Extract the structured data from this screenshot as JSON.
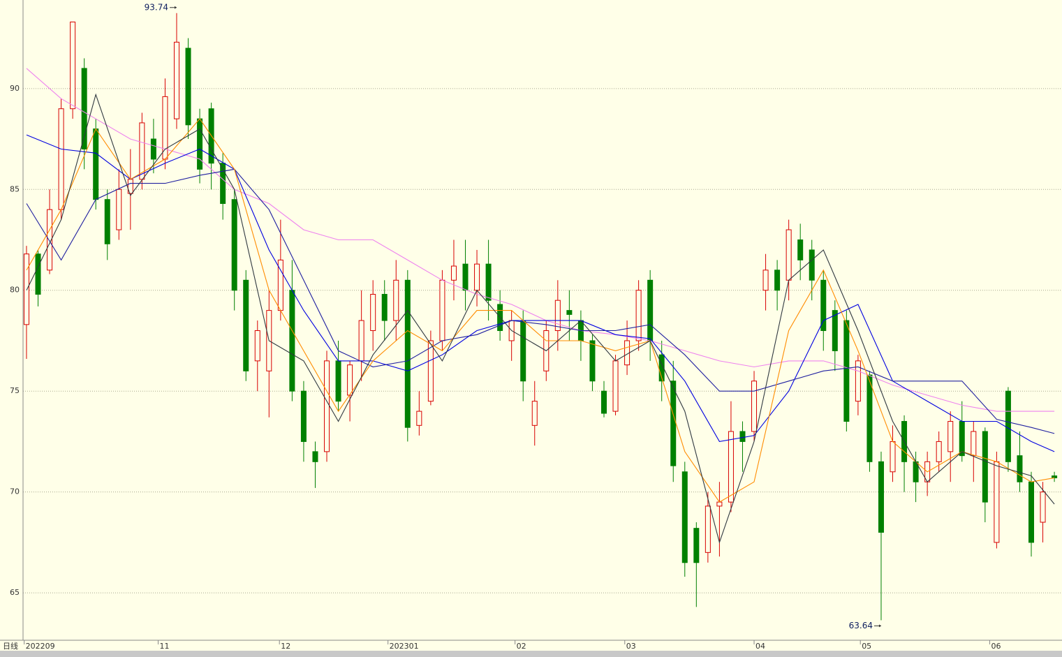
{
  "chart_data": {
    "type": "candlestick",
    "period_label": "日线",
    "xlim": [
      -0.3,
      89.66
    ],
    "ylim": [
      62.65,
      94.39
    ],
    "yticks": [
      65,
      70,
      75,
      80,
      85,
      90
    ],
    "grid": true,
    "xticks": [
      {
        "value": -0.2,
        "label": "202209"
      },
      {
        "value": 11.4,
        "label": "11"
      },
      {
        "value": 21.9,
        "label": "12"
      },
      {
        "value": 31.3,
        "label": "202301"
      },
      {
        "value": 42.3,
        "label": "02"
      },
      {
        "value": 51.8,
        "label": "03"
      },
      {
        "value": 63.0,
        "label": "04"
      },
      {
        "value": 72.2,
        "label": "05"
      },
      {
        "value": 83.4,
        "label": "06"
      }
    ],
    "up_color": "#d80000",
    "down_color": "#008000",
    "candles": {
      "open": [
        78.3,
        81.8,
        81,
        84,
        89,
        91,
        88,
        84.5,
        83,
        84.8,
        85.5,
        87.5,
        86.5,
        88.5,
        92,
        88.5,
        89,
        86.3,
        84.5,
        80.5,
        76.5,
        76,
        79,
        80,
        75,
        72,
        72,
        76.5,
        74.8,
        76.5,
        78,
        79.8,
        78.5,
        80.5,
        73.3,
        74.5,
        77.5,
        80.5,
        81.3,
        80,
        81.3,
        79.3,
        77.5,
        78.5,
        73.3,
        76,
        78,
        79,
        78.5,
        77.5,
        75,
        74,
        76.3,
        77.5,
        80.5,
        76.8,
        75.5,
        71,
        68.2,
        67,
        69.3,
        69.5,
        73,
        73,
        80,
        81,
        80.5,
        82.5,
        82,
        80.5,
        79,
        78.5,
        74.5,
        75.8,
        71.5,
        71,
        73.5,
        71.5,
        70.5,
        71.5,
        72,
        73.5,
        71.8,
        73,
        67.5,
        75,
        71.8,
        70.5,
        68.5,
        70.8
      ],
      "high": [
        82.2,
        82,
        85,
        89.5,
        93.3,
        91.5,
        88.5,
        85,
        86,
        87,
        88.8,
        88.5,
        90.5,
        93.74,
        92.5,
        89,
        89.3,
        86.8,
        85,
        81,
        78.5,
        80,
        83.5,
        81.5,
        75.5,
        72.5,
        77,
        77.5,
        76.5,
        80,
        80.5,
        80.5,
        81.5,
        81,
        75,
        78,
        81,
        82.5,
        82.5,
        82,
        82.5,
        80,
        79,
        79,
        75.5,
        78.5,
        80.5,
        80,
        79,
        77.8,
        75.5,
        76.8,
        78.5,
        80.5,
        81,
        77.5,
        76.5,
        71.5,
        68.5,
        70,
        70.5,
        74.5,
        73.5,
        76,
        81.8,
        81.5,
        83.5,
        83.3,
        82.5,
        81,
        79.5,
        79,
        76.8,
        76,
        72,
        73.3,
        73.8,
        72,
        72,
        73,
        74,
        74.5,
        73.5,
        73.2,
        72,
        75.2,
        73,
        71,
        70.5,
        71
      ],
      "low": [
        76.6,
        79.2,
        80.8,
        83.5,
        88.5,
        86,
        84,
        81.5,
        82.5,
        83,
        85,
        85.8,
        86,
        88,
        87.5,
        85.3,
        85,
        83.5,
        79,
        75.5,
        75,
        73.7,
        78.5,
        74.5,
        71.5,
        70.2,
        71.5,
        74,
        73.5,
        75.5,
        77,
        77.5,
        77.5,
        72.5,
        72.8,
        74.3,
        77,
        79.5,
        79,
        79.2,
        78.5,
        77.5,
        76.5,
        74.5,
        72.3,
        75.5,
        77,
        77.5,
        76.5,
        75,
        73.7,
        73.8,
        75.8,
        77,
        76.5,
        74.5,
        70.5,
        65.8,
        64.3,
        66.5,
        66.8,
        69,
        71,
        72.5,
        79,
        79,
        79.5,
        80.5,
        79.5,
        77,
        76,
        73,
        73.8,
        71,
        63.64,
        70.5,
        70,
        69.5,
        69.8,
        71,
        70.5,
        71.5,
        70.5,
        68.5,
        67.2,
        71,
        70,
        66.8,
        67.5,
        70.5
      ],
      "close": [
        81.8,
        79.8,
        84,
        89,
        93.3,
        87,
        84.5,
        82.3,
        85,
        85.5,
        88.3,
        86.5,
        89.6,
        92.3,
        88.2,
        86,
        86.3,
        84.3,
        80,
        76,
        78,
        79,
        81.5,
        75,
        72.5,
        71.5,
        76.5,
        74.5,
        76.3,
        78.5,
        79.8,
        78.5,
        80.5,
        73.2,
        74,
        77.5,
        80.5,
        81.2,
        80,
        81.3,
        79.5,
        78,
        78.5,
        75.5,
        74.5,
        78,
        79.5,
        78.8,
        77.5,
        75.5,
        73.9,
        76.5,
        77.5,
        80,
        77.5,
        75.5,
        71.3,
        66.5,
        66.5,
        69.3,
        69.5,
        73,
        72.5,
        75.5,
        81,
        80,
        83,
        81.5,
        80.5,
        78,
        77,
        73.5,
        76.5,
        71.5,
        68,
        72.5,
        71.5,
        70.5,
        71.5,
        72.5,
        73.5,
        71.8,
        73,
        69.5,
        71.5,
        71.5,
        70.5,
        67.5,
        70,
        70.7
      ]
    },
    "series": [
      {
        "color": "#ee82ee",
        "x": [
          0,
          3,
          6,
          9,
          12,
          15,
          18,
          21,
          24,
          27,
          30,
          33,
          36,
          39,
          42,
          45,
          48,
          51,
          54,
          57,
          60,
          63,
          66,
          69,
          72,
          75,
          78,
          81,
          84,
          87,
          89
        ],
        "values": [
          91,
          89.5,
          88.5,
          87.5,
          87,
          86.5,
          85,
          84.3,
          83,
          82.5,
          82.5,
          81.5,
          80.5,
          79.8,
          79.3,
          78.5,
          78,
          77.8,
          77.5,
          77,
          76.5,
          76.2,
          76.5,
          76.5,
          76,
          75.3,
          74.8,
          74.3,
          74,
          74,
          74
        ]
      },
      {
        "color": "#0000e0",
        "x": [
          0,
          3,
          6,
          9,
          12,
          15,
          18,
          21,
          24,
          27,
          30,
          33,
          36,
          39,
          42,
          45,
          48,
          51,
          54,
          57,
          60,
          63,
          66,
          69,
          72,
          75,
          78,
          81,
          84,
          87,
          89
        ],
        "values": [
          87.7,
          87,
          86.8,
          85.5,
          86.3,
          87,
          86,
          82,
          79,
          76.5,
          76.5,
          76,
          76.8,
          78,
          78.5,
          78.5,
          78.5,
          77.8,
          77.6,
          75.5,
          72.5,
          72.8,
          75,
          78.5,
          79.3,
          75.5,
          74.5,
          73.5,
          73.5,
          72.5,
          72
        ]
      },
      {
        "color": "#2020a0",
        "x": [
          0,
          3,
          6,
          9,
          12,
          15,
          18,
          21,
          24,
          27,
          30,
          33,
          36,
          39,
          42,
          45,
          48,
          51,
          54,
          57,
          60,
          63,
          66,
          69,
          72,
          75,
          78,
          81,
          84,
          87,
          89
        ],
        "values": [
          84.3,
          81.5,
          84.5,
          85.3,
          85.3,
          85.7,
          86,
          84,
          80.5,
          77,
          76.2,
          76.5,
          77.5,
          77.8,
          78.5,
          78.3,
          78,
          78,
          78.3,
          76.8,
          75,
          75,
          75.5,
          76,
          76.2,
          75.5,
          75.5,
          75.5,
          73.6,
          73.2,
          72.9
        ]
      },
      {
        "color": "#ff8c00",
        "x": [
          0,
          3,
          6,
          9,
          12,
          15,
          18,
          21,
          24,
          27,
          30,
          33,
          36,
          39,
          42,
          45,
          48,
          51,
          54,
          57,
          60,
          63,
          66,
          69,
          72,
          75,
          78,
          81,
          84,
          87,
          89
        ],
        "values": [
          81,
          84,
          88,
          85.5,
          86.5,
          88.5,
          86,
          80,
          77,
          74,
          76.5,
          78,
          77,
          79,
          79,
          77.5,
          77.5,
          77,
          77.5,
          72,
          69.5,
          70.5,
          78,
          81,
          77,
          72.5,
          71,
          72,
          71.5,
          70.5,
          70.7
        ]
      },
      {
        "color": "#303840",
        "x": [
          0,
          3,
          6,
          9,
          12,
          15,
          18,
          21,
          24,
          27,
          30,
          33,
          36,
          39,
          42,
          45,
          48,
          51,
          54,
          57,
          60,
          63,
          66,
          69,
          72,
          75,
          78,
          81,
          84,
          87,
          89
        ],
        "values": [
          80,
          83.5,
          89.7,
          84.7,
          87,
          88,
          85,
          77.5,
          76.5,
          73.5,
          76.8,
          79,
          76.5,
          80,
          78,
          77,
          78.5,
          76.5,
          77.5,
          74,
          67.5,
          72.5,
          80.5,
          82,
          78,
          73.5,
          70.5,
          72,
          71.3,
          70.8,
          69.4
        ]
      }
    ]
  }
}
